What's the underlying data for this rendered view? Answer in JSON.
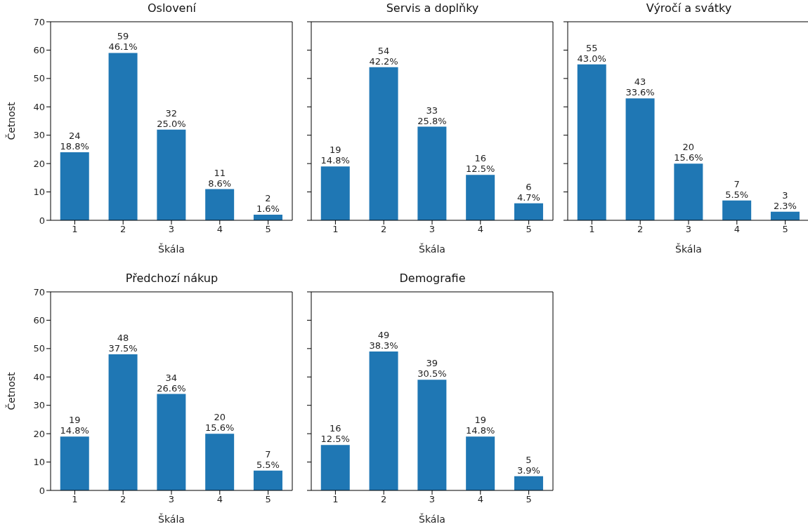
{
  "chart_data": [
    {
      "type": "bar",
      "title": "Oslovení",
      "xlabel": "Škála",
      "ylabel": "Četnost",
      "categories": [
        "1",
        "2",
        "3",
        "4",
        "5"
      ],
      "values": [
        24,
        59,
        32,
        11,
        2
      ],
      "value_labels": [
        "24\n18.8%",
        "59\n46.1%",
        "32\n25.0%",
        "11\n8.6%",
        "2\n1.6%"
      ],
      "color": "#1f77b4",
      "ylim": [
        0,
        70
      ],
      "yticks": [
        0,
        10,
        20,
        30,
        40,
        50,
        60,
        70
      ]
    },
    {
      "type": "bar",
      "title": "Servis a doplňky",
      "xlabel": "Škála",
      "categories": [
        "1",
        "2",
        "3",
        "4",
        "5"
      ],
      "values": [
        19,
        54,
        33,
        16,
        6
      ],
      "value_labels": [
        "19\n14.8%",
        "54\n42.2%",
        "33\n25.8%",
        "16\n12.5%",
        "6\n4.7%"
      ],
      "color": "#1f77b4",
      "ylim": [
        0,
        70
      ],
      "yticks": [
        0,
        10,
        20,
        30,
        40,
        50,
        60,
        70
      ],
      "tick_labels": "x"
    },
    {
      "type": "bar",
      "title": "Výročí a svátky",
      "xlabel": "Škála",
      "categories": [
        "1",
        "2",
        "3",
        "4",
        "5"
      ],
      "values": [
        55,
        43,
        20,
        7,
        3
      ],
      "value_labels": [
        "55\n43.0%",
        "43\n33.6%",
        "20\n15.6%",
        "7\n5.5%",
        "3\n2.3%"
      ],
      "color": "#1f77b4",
      "ylim": [
        0,
        70
      ],
      "yticks": [
        0,
        10,
        20,
        30,
        40,
        50,
        60,
        70
      ],
      "tick_labels": "x"
    },
    {
      "type": "bar",
      "title": "Předchozí nákup",
      "xlabel": "Škála",
      "ylabel": "Četnost",
      "categories": [
        "1",
        "2",
        "3",
        "4",
        "5"
      ],
      "values": [
        19,
        48,
        34,
        20,
        7
      ],
      "value_labels": [
        "19\n14.8%",
        "48\n37.5%",
        "34\n26.6%",
        "20\n15.6%",
        "7\n5.5%"
      ],
      "color": "#1f77b4",
      "ylim": [
        0,
        70
      ],
      "yticks": [
        0,
        10,
        20,
        30,
        40,
        50,
        60,
        70
      ]
    },
    {
      "type": "bar",
      "title": "Demografie",
      "xlabel": "Škála",
      "categories": [
        "1",
        "2",
        "3",
        "4",
        "5"
      ],
      "values": [
        16,
        49,
        39,
        19,
        5
      ],
      "value_labels": [
        "16\n12.5%",
        "49\n38.3%",
        "39\n30.5%",
        "19\n14.8%",
        "5\n3.9%"
      ],
      "color": "#1f77b4",
      "ylim": [
        0,
        70
      ],
      "yticks": [
        0,
        10,
        20,
        30,
        40,
        50,
        60,
        70
      ],
      "tick_labels": "x"
    }
  ]
}
